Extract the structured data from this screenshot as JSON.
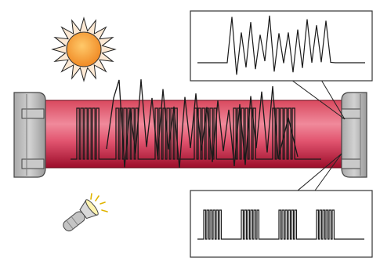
{
  "colors": {
    "background": "#ffffff",
    "tube_dark": "#a01030",
    "tube_light": "#f090a0",
    "cap_fill": "#b8b8b8",
    "cap_stroke": "#555555",
    "waveform": "#1a1a1a",
    "sun_fill": "#f7a13a",
    "sun_rays": "#fbe6cf"
  },
  "icons": {
    "sun": "sun-icon",
    "flashlight": "flashlight-icon"
  }
}
